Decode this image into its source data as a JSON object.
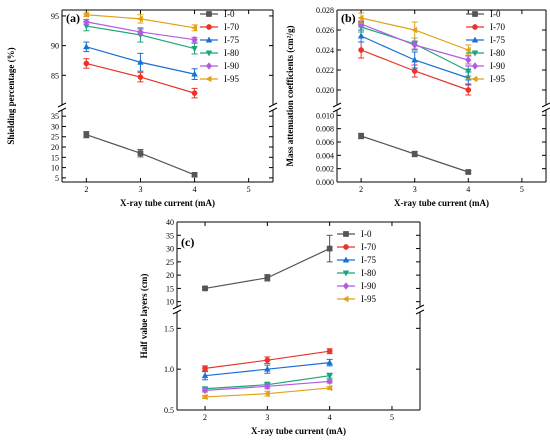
{
  "chart_data": [
    {
      "type": "line",
      "panel_label": "(a)",
      "xlabel": "X-ray tube current (mA)",
      "ylabel": "Shielding percentage (%)",
      "x_ticks": [
        2,
        3,
        4,
        5
      ],
      "xlim": [
        1.55,
        5.45
      ],
      "broken_axis": true,
      "upper": {
        "ylim": [
          80,
          96
        ],
        "ticks": [
          85,
          90,
          95
        ]
      },
      "lower": {
        "ylim": [
          3,
          38
        ],
        "ticks": [
          5,
          10,
          15,
          20,
          25,
          30,
          35
        ]
      },
      "legend_position": "top-right",
      "grid": false,
      "categories": [
        2,
        3,
        4
      ],
      "series": [
        {
          "name": "I-0",
          "color": "#555555",
          "marker": "square",
          "values": [
            26.0,
            17.0,
            6.5
          ],
          "errors": [
            1.5,
            1.8,
            0.8
          ]
        },
        {
          "name": "I-70",
          "color": "#e8352b",
          "marker": "circle",
          "values": [
            87.0,
            84.7,
            82.0
          ],
          "errors": [
            0.8,
            0.8,
            0.8
          ]
        },
        {
          "name": "I-75",
          "color": "#1a6fd6",
          "marker": "triangle-up",
          "values": [
            89.8,
            87.2,
            85.2
          ],
          "errors": [
            0.8,
            1.5,
            0.9
          ]
        },
        {
          "name": "I-80",
          "color": "#1aa67a",
          "marker": "triangle-down",
          "values": [
            93.3,
            91.8,
            89.5
          ],
          "errors": [
            0.8,
            1.2,
            0.9
          ]
        },
        {
          "name": "I-90",
          "color": "#b15ce0",
          "marker": "diamond",
          "values": [
            94.0,
            92.3,
            91.0
          ],
          "errors": [
            0.4,
            0.5,
            0.4
          ]
        },
        {
          "name": "I-95",
          "color": "#e0a218",
          "marker": "triangle-left",
          "values": [
            95.2,
            94.5,
            93.0
          ],
          "errors": [
            0.3,
            0.7,
            0.5
          ]
        }
      ]
    },
    {
      "type": "line",
      "panel_label": "(b)",
      "xlabel": "X-ray tube current (mA)",
      "ylabel": "Mass attenuation coefficients (cm²/g)",
      "x_ticks": [
        2,
        3,
        4,
        5
      ],
      "xlim": [
        1.55,
        5.45
      ],
      "broken_axis": true,
      "upper": {
        "ylim": [
          0.0185,
          0.028
        ],
        "ticks": [
          "0.020",
          "0.022",
          "0.024",
          "0.026",
          "0.028"
        ]
      },
      "lower": {
        "ylim": [
          0.0,
          0.0108
        ],
        "ticks": [
          "0.000",
          "0.002",
          "0.004",
          "0.006",
          "0.008",
          "0.010"
        ]
      },
      "legend_position": "top-right",
      "grid": false,
      "categories": [
        2,
        3,
        4
      ],
      "series": [
        {
          "name": "I-0",
          "color": "#555555",
          "marker": "square",
          "values": [
            0.0069,
            0.0042,
            0.0015
          ],
          "errors": [
            0.0004,
            0.0004,
            0.0002
          ]
        },
        {
          "name": "I-70",
          "color": "#e8352b",
          "marker": "circle",
          "values": [
            0.024,
            0.0219,
            0.02
          ],
          "errors": [
            0.0008,
            0.0006,
            0.0005
          ]
        },
        {
          "name": "I-75",
          "color": "#1a6fd6",
          "marker": "triangle-up",
          "values": [
            0.0254,
            0.023,
            0.0212
          ],
          "errors": [
            0.0006,
            0.0008,
            0.0006
          ]
        },
        {
          "name": "I-80",
          "color": "#1aa67a",
          "marker": "triangle-down",
          "values": [
            0.0263,
            0.0246,
            0.0219
          ],
          "errors": [
            0.0005,
            0.0006,
            0.0005
          ]
        },
        {
          "name": "I-90",
          "color": "#b15ce0",
          "marker": "diamond",
          "values": [
            0.0266,
            0.0245,
            0.023
          ],
          "errors": [
            0.0003,
            0.0004,
            0.0004
          ]
        },
        {
          "name": "I-95",
          "color": "#e0a218",
          "marker": "triangle-left",
          "values": [
            0.0272,
            0.026,
            0.024
          ],
          "errors": [
            0.0005,
            0.0008,
            0.0005
          ]
        }
      ]
    },
    {
      "type": "line",
      "panel_label": "(c)",
      "xlabel": "X-ray tube current (mA)",
      "ylabel": "Half value layers (cm)",
      "x_ticks": [
        2,
        3,
        4,
        5
      ],
      "xlim": [
        1.55,
        5.45
      ],
      "broken_axis": true,
      "upper": {
        "ylim": [
          8,
          40
        ],
        "ticks": [
          10,
          15,
          20,
          25,
          30,
          35,
          40
        ]
      },
      "lower": {
        "ylim": [
          0.5,
          1.7
        ],
        "ticks": [
          "0.5",
          "1.0",
          "1.5"
        ]
      },
      "legend_position": "top-right",
      "grid": false,
      "categories": [
        2,
        3,
        4
      ],
      "series": [
        {
          "name": "I-0",
          "color": "#555555",
          "marker": "square",
          "values": [
            15.0,
            19.0,
            30.0
          ],
          "errors": [
            0.4,
            1.2,
            5.0
          ],
          "axis": "upper"
        },
        {
          "name": "I-70",
          "color": "#e8352b",
          "marker": "circle",
          "values": [
            1.01,
            1.11,
            1.22
          ],
          "errors": [
            0.03,
            0.04,
            0.03
          ],
          "axis": "lower"
        },
        {
          "name": "I-75",
          "color": "#1a6fd6",
          "marker": "triangle-up",
          "values": [
            0.92,
            1.0,
            1.08
          ],
          "errors": [
            0.05,
            0.05,
            0.04
          ],
          "axis": "lower"
        },
        {
          "name": "I-80",
          "color": "#1aa67a",
          "marker": "triangle-down",
          "values": [
            0.76,
            0.81,
            0.92
          ],
          "errors": [
            0.02,
            0.03,
            0.03
          ],
          "axis": "lower"
        },
        {
          "name": "I-90",
          "color": "#b15ce0",
          "marker": "diamond",
          "values": [
            0.74,
            0.79,
            0.85
          ],
          "errors": [
            0.02,
            0.03,
            0.02
          ],
          "axis": "lower"
        },
        {
          "name": "I-95",
          "color": "#e0a218",
          "marker": "triangle-left",
          "values": [
            0.66,
            0.7,
            0.77
          ],
          "errors": [
            0.02,
            0.03,
            0.02
          ],
          "axis": "lower"
        }
      ]
    }
  ]
}
